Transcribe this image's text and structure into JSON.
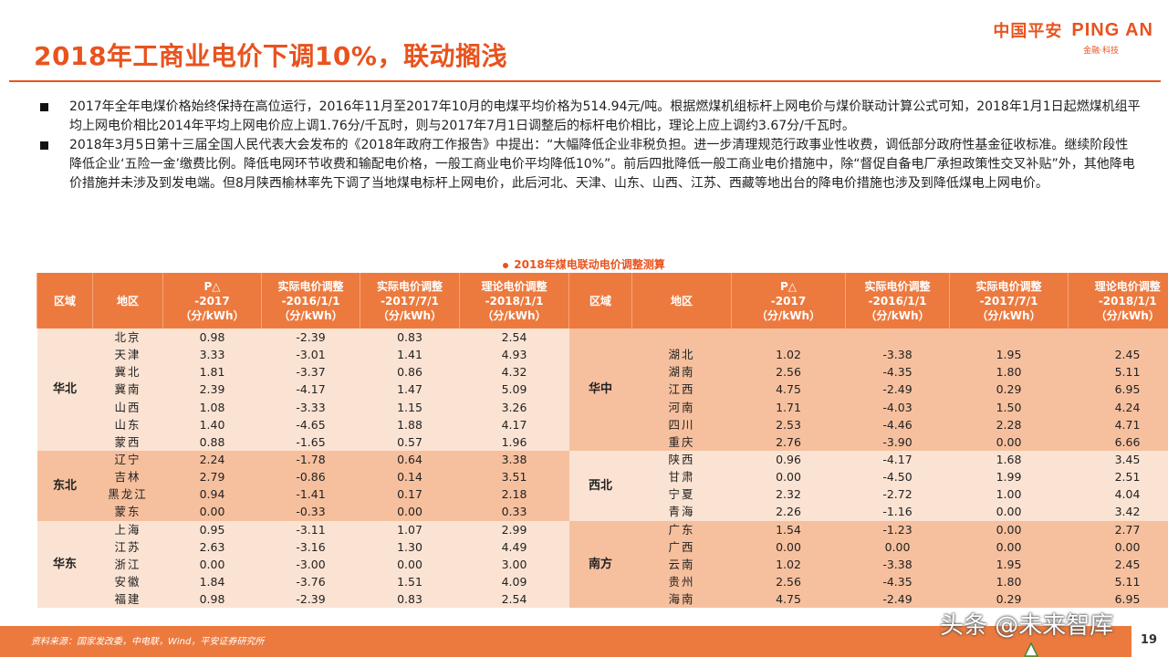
{
  "title": "2018年工商业电价下调10%，联动搁浅",
  "logo": {
    "cn": "中国平安",
    "en": "PING AN",
    "tagline": "金融·科技"
  },
  "bullets": [
    "2017年全年电煤价格始终保持在高位运行，2016年11月至2017年10月的电煤平均价格为514.94元/吨。根据燃煤机组标杆上网电价与煤价联动计算公式可知，2018年1月1日起燃煤机组平均上网电价相比2014年平均上网电价应上调1.76分/千瓦时，则与2017年7月1日调整后的标杆电价相比，理论上应上调约3.67分/千瓦时。",
    "2018年3月5日第十三届全国人民代表大会发布的《2018年政府工作报告》中提出：“大幅降低企业非税负担。进一步清理规范行政事业性收费，调低部分政府性基金征收标准。继续阶段性降低企业‘五险一金’缴费比例。降低电网环节收费和输配电价格，一般工商业电价平均降低10%”。前后四批降低一般工商业电价措施中，除“督促自备电厂承担政策性交叉补贴”外，其他降电价措施并未涉及到发电端。但8月陕西榆林率先下调了当地煤电标杆上网电价，此后河北、天津、山东、山西、江苏、西藏等地出台的降电价措施也涉及到降低煤电上网电价。"
  ],
  "table": {
    "title": "2018年煤电联动电价调整测算",
    "headers": {
      "region": "区域",
      "area": "地区",
      "p_l1": "P△",
      "p_l2": "-2017",
      "p_l3": "（分/kWh）",
      "a1_l1": "实际电价调整",
      "a1_l2": "-2016/1/1",
      "a1_l3": "（分/kWh）",
      "a2_l1": "实际电价调整",
      "a2_l2": "-2017/7/1",
      "a2_l3": "（分/kWh）",
      "t_l1": "理论电价调整",
      "t_l2": "-2018/1/1",
      "t_l3": "（分/kWh）"
    },
    "left_groups": [
      {
        "name": "华北",
        "rows": [
          [
            "北京",
            "0.98",
            "-2.39",
            "0.83",
            "2.54"
          ],
          [
            "天津",
            "3.33",
            "-3.01",
            "1.41",
            "4.93"
          ],
          [
            "冀北",
            "1.81",
            "-3.37",
            "0.86",
            "4.32"
          ],
          [
            "冀南",
            "2.39",
            "-4.17",
            "1.47",
            "5.09"
          ],
          [
            "山西",
            "1.08",
            "-3.33",
            "1.15",
            "3.26"
          ],
          [
            "山东",
            "1.40",
            "-4.65",
            "1.88",
            "4.17"
          ],
          [
            "蒙西",
            "0.88",
            "-1.65",
            "0.57",
            "1.96"
          ]
        ]
      },
      {
        "name": "东北",
        "rows": [
          [
            "辽宁",
            "2.24",
            "-1.78",
            "0.64",
            "3.38"
          ],
          [
            "吉林",
            "2.79",
            "-0.86",
            "0.14",
            "3.51"
          ],
          [
            "黑龙江",
            "0.94",
            "-1.41",
            "0.17",
            "2.18"
          ],
          [
            "蒙东",
            "0.00",
            "-0.33",
            "0.00",
            "0.33"
          ]
        ]
      },
      {
        "name": "华东",
        "rows": [
          [
            "上海",
            "0.95",
            "-3.11",
            "1.07",
            "2.99"
          ],
          [
            "江苏",
            "2.63",
            "-3.16",
            "1.30",
            "4.49"
          ],
          [
            "浙江",
            "0.00",
            "-3.00",
            "0.00",
            "3.00"
          ],
          [
            "安徽",
            "1.84",
            "-3.76",
            "1.51",
            "4.09"
          ],
          [
            "福建",
            "0.98",
            "-2.39",
            "0.83",
            "2.54"
          ]
        ]
      }
    ],
    "right_groups": [
      {
        "name": "华中",
        "rows": [
          [
            "湖北",
            "1.02",
            "-3.38",
            "1.95",
            "2.45"
          ],
          [
            "湖南",
            "2.56",
            "-4.35",
            "1.80",
            "5.11"
          ],
          [
            "江西",
            "4.75",
            "-2.49",
            "0.29",
            "6.95"
          ],
          [
            "河南",
            "1.71",
            "-4.03",
            "1.50",
            "4.24"
          ],
          [
            "四川",
            "2.53",
            "-4.46",
            "2.28",
            "4.71"
          ],
          [
            "重庆",
            "2.76",
            "-3.90",
            "0.00",
            "6.66"
          ]
        ]
      },
      {
        "name": "西北",
        "rows": [
          [
            "陕西",
            "0.96",
            "-4.17",
            "1.68",
            "3.45"
          ],
          [
            "甘肃",
            "0.00",
            "-4.50",
            "1.99",
            "2.51"
          ],
          [
            "宁夏",
            "2.32",
            "-2.72",
            "1.00",
            "4.04"
          ],
          [
            "青海",
            "2.26",
            "-1.16",
            "0.00",
            "3.42"
          ]
        ]
      },
      {
        "name": "南方",
        "rows": [
          [
            "广东",
            "1.54",
            "-1.23",
            "0.00",
            "2.77"
          ],
          [
            "广西",
            "0.00",
            "0.00",
            "0.00",
            "0.00"
          ],
          [
            "云南",
            "1.02",
            "-3.38",
            "1.95",
            "2.45"
          ],
          [
            "贵州",
            "2.56",
            "-4.35",
            "1.80",
            "5.11"
          ],
          [
            "海南",
            "4.75",
            "-2.49",
            "0.29",
            "6.95"
          ]
        ]
      }
    ]
  },
  "footer": {
    "source": "资料来源：国家发改委，中电联，Wind，平安证券研究所",
    "watermark": "头条 @未来智库",
    "page": "19"
  },
  "colors": {
    "accent": "#e8531e",
    "header_fill": "#ec7a3f",
    "row_light": "#fbe3d3",
    "row_dark": "#f6c09e"
  }
}
